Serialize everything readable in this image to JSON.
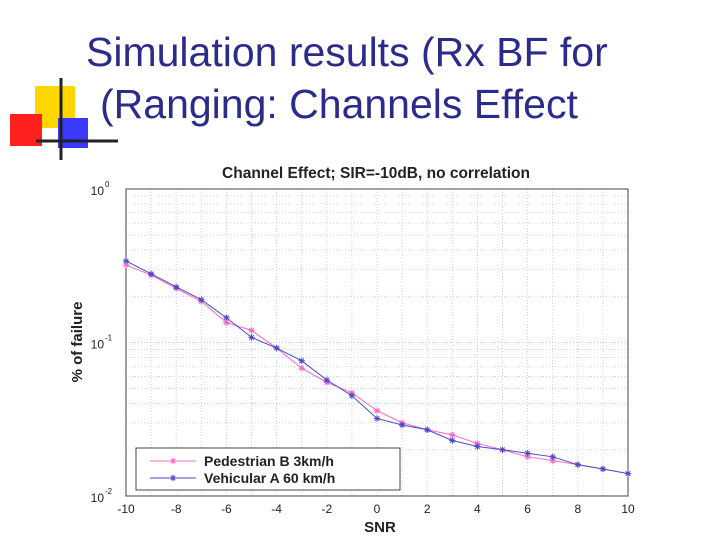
{
  "slide": {
    "title_line1": "Simulation results (Rx BF for",
    "title_line2": "(Ranging: Channels Effect"
  },
  "colors": {
    "title": "#2b2b8c",
    "deco_yellow": "#ffd700",
    "deco_red": "#ff2020",
    "deco_blue": "#3a3aff",
    "series_pedestrian": "#ff66cc",
    "series_vehicular": "#4a4ac8"
  },
  "chart_data": {
    "type": "line",
    "title": "Channel Effect; SIR=-10dB, no correlation",
    "xlabel": "SNR",
    "ylabel": "% of failure",
    "yscale": "log",
    "xlim": [
      -10,
      10
    ],
    "ylim": [
      0.01,
      1
    ],
    "grid": true,
    "legend_position": "bottom-left",
    "x_ticks": [
      "-10",
      "-8",
      "-6",
      "-4",
      "-2",
      "0",
      "2",
      "4",
      "6",
      "8",
      "10"
    ],
    "y_ticks": [
      {
        "base": "10",
        "exp": "0",
        "value": 1
      },
      {
        "base": "10",
        "exp": "-1",
        "value": 0.1
      },
      {
        "base": "10",
        "exp": "-2",
        "value": 0.01
      }
    ],
    "x": [
      -10,
      -9,
      -8,
      -7,
      -6,
      -5,
      -4,
      -3,
      -2,
      -1,
      0,
      1,
      2,
      3,
      4,
      5,
      6,
      7,
      8,
      9,
      10
    ],
    "series": [
      {
        "name": "Pedestrian B 3km/h",
        "color": "#ff66cc",
        "values": [
          0.32,
          0.275,
          0.225,
          0.185,
          0.135,
          0.12,
          0.092,
          0.068,
          0.055,
          0.047,
          0.036,
          0.03,
          0.027,
          0.025,
          0.022,
          0.02,
          0.018,
          0.017,
          0.016,
          0.015,
          0.014
        ]
      },
      {
        "name": "Vehicular A 60 km/h",
        "color": "#4a4ac8",
        "values": [
          0.34,
          0.28,
          0.23,
          0.19,
          0.145,
          0.108,
          0.092,
          0.076,
          0.057,
          0.045,
          0.032,
          0.029,
          0.027,
          0.023,
          0.021,
          0.02,
          0.019,
          0.018,
          0.016,
          0.015,
          0.014
        ]
      }
    ]
  }
}
